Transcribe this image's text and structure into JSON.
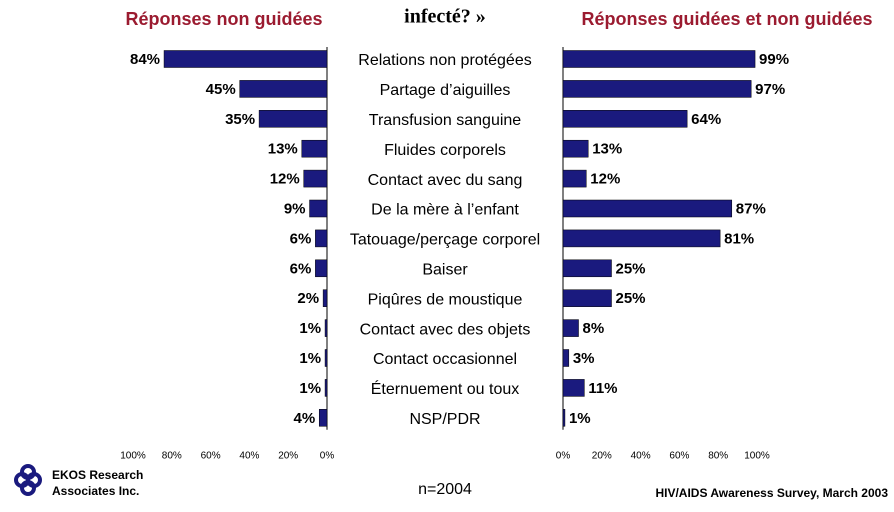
{
  "title": "infecté? »",
  "chart_data": [
    {
      "type": "bar",
      "orientation": "horizontal",
      "title": "Réponses non guidées",
      "color": "#1a1a7e",
      "categories": [
        "Relations non protégées",
        "Partage d’aiguilles",
        "Transfusion sanguine",
        "Fluides corporels",
        "Contact avec du sang",
        "De la mère à l’enfant",
        "Tatouage/perçage corporel",
        "Baiser",
        "Piqûres de moustique",
        "Contact avec des objets",
        "Contact occasionnel",
        "Éternuement ou toux",
        "NSP/PDR"
      ],
      "values": [
        84,
        45,
        35,
        13,
        12,
        9,
        6,
        6,
        2,
        1,
        1,
        1,
        4
      ],
      "value_labels": [
        "84%",
        "45%",
        "35%",
        "13%",
        "12%",
        "9%",
        "6%",
        "6%",
        "2%",
        "1%",
        "1%",
        "1%",
        "4%"
      ],
      "xlim": [
        100,
        0
      ],
      "xticks": [
        {
          "value": 100,
          "label": "100%"
        },
        {
          "value": 80,
          "label": "80%"
        },
        {
          "value": 60,
          "label": "60%"
        },
        {
          "value": 40,
          "label": "40%"
        },
        {
          "value": 20,
          "label": "20%"
        },
        {
          "value": 0,
          "label": "0%"
        }
      ]
    },
    {
      "type": "bar",
      "orientation": "horizontal",
      "title": "Réponses guidées et non guidées",
      "color": "#1a1a7e",
      "values": [
        99,
        97,
        64,
        13,
        12,
        87,
        81,
        25,
        25,
        8,
        3,
        11,
        1
      ],
      "value_labels": [
        "99%",
        "97%",
        "64%",
        "13%",
        "12%",
        "87%",
        "81%",
        "25%",
        "25%",
        "8%",
        "3%",
        "11%",
        "1%"
      ],
      "xlim": [
        0,
        100
      ],
      "xticks": [
        {
          "value": 0,
          "label": "0%"
        },
        {
          "value": 20,
          "label": "20%"
        },
        {
          "value": 40,
          "label": "40%"
        },
        {
          "value": 60,
          "label": "60%"
        },
        {
          "value": 80,
          "label": "80%"
        },
        {
          "value": 100,
          "label": "100%"
        }
      ]
    }
  ],
  "footer": {
    "logo_line1": "EKOS Research",
    "logo_line2": "Associates Inc.",
    "sample": "n=2004",
    "source": "HIV/AIDS Awareness Survey, March 2003"
  }
}
